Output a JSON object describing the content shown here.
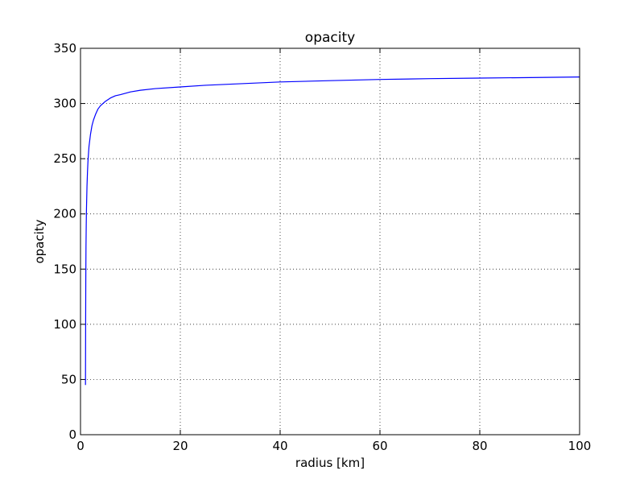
{
  "chart_data": {
    "type": "line",
    "title": "opacity",
    "xlabel": "radius [km]",
    "ylabel": "opacity",
    "xlim": [
      0,
      100
    ],
    "ylim": [
      0,
      350
    ],
    "xticks": [
      0,
      20,
      40,
      60,
      80,
      100
    ],
    "xtick_labels": [
      "0",
      "20",
      "40",
      "60",
      "80",
      "100"
    ],
    "yticks": [
      0,
      50,
      100,
      150,
      200,
      250,
      300,
      350
    ],
    "ytick_labels": [
      "0",
      "50",
      "100",
      "150",
      "200",
      "250",
      "300",
      "350"
    ],
    "grid": true,
    "series": [
      {
        "color": "#0000ff",
        "x": [
          1.0,
          1.03,
          1.06,
          1.1,
          1.15,
          1.2,
          1.3,
          1.4,
          1.5,
          1.7,
          2.0,
          2.3,
          2.6,
          3.0,
          3.5,
          4.0,
          5.0,
          6.0,
          7.0,
          8.0,
          10.0,
          12.0,
          15.0,
          20.0,
          25.0,
          30.0,
          40.0,
          50.0,
          60.0,
          70.0,
          80.0,
          90.0,
          100.0
        ],
        "y": [
          45,
          100,
          140,
          170,
          190,
          205,
          225,
          238,
          248,
          261,
          272,
          280,
          285,
          290,
          295,
          298,
          302,
          305,
          307,
          308,
          310.5,
          312,
          313.5,
          315,
          316.5,
          317.5,
          319.5,
          320.7,
          321.8,
          322.5,
          323,
          323.5,
          324
        ]
      }
    ]
  }
}
